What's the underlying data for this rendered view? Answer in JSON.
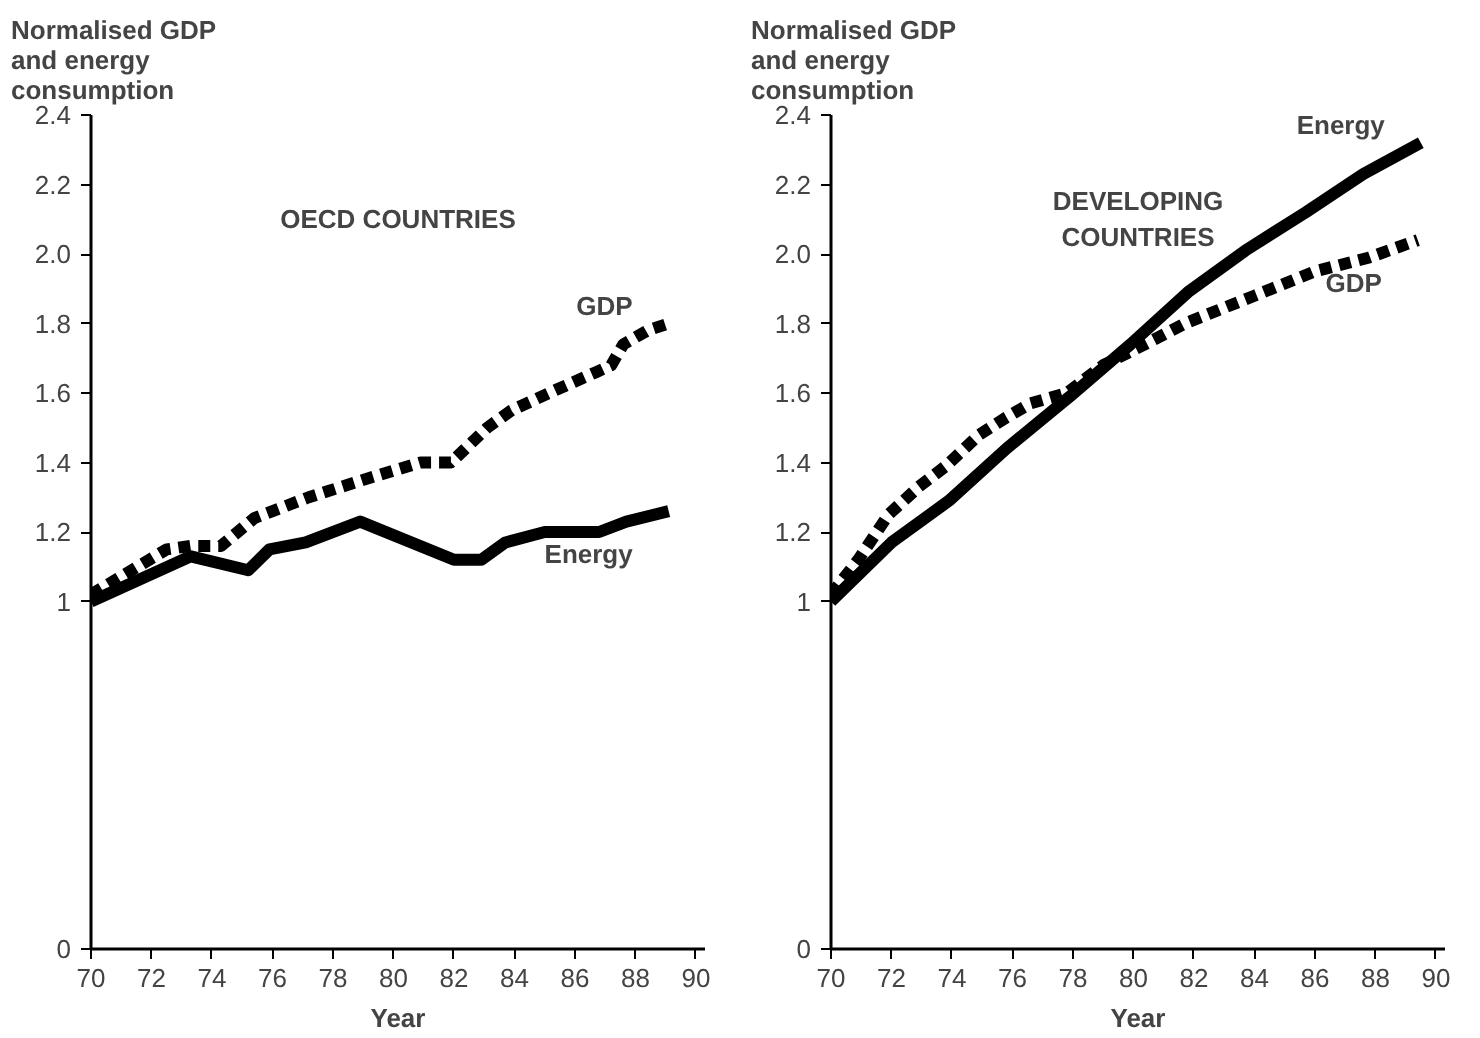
{
  "chart_data": [
    {
      "type": "line",
      "ylabel": "Normalised GDP\nand energy\nconsumption",
      "xlabel": "Year",
      "annotations": [
        "OECD COUNTRIES"
      ],
      "xlim": [
        70,
        90.3
      ],
      "ylim": [
        0,
        2.4
      ],
      "xticks": [
        70,
        72,
        74,
        76,
        78,
        80,
        82,
        84,
        86,
        88,
        90
      ],
      "yticks": [
        0,
        1,
        1.2,
        1.4,
        1.6,
        1.8,
        {
          "value": 2,
          "label": "2.0"
        },
        2.2,
        2.4
      ],
      "grid": false,
      "series": [
        {
          "name": "GDP",
          "color": "#000000",
          "line_style": "dashed",
          "x": [
            70,
            72.5,
            73.3,
            74.3,
            75.4,
            77.2,
            79,
            80.9,
            81.9,
            83.1,
            83.9,
            85.4,
            86.7,
            87.2,
            87.6,
            88.4,
            89.1
          ],
          "values": [
            1.02,
            1.15,
            1.16,
            1.16,
            1.24,
            1.3,
            1.35,
            1.4,
            1.4,
            1.5,
            1.55,
            1.61,
            1.66,
            1.68,
            1.74,
            1.78,
            1.8
          ]
        },
        {
          "name": "Energy",
          "color": "#000000",
          "line_style": "solid",
          "x": [
            70,
            73.3,
            75.2,
            75.9,
            77.1,
            78.9,
            82.0,
            82.9,
            83.7,
            85,
            86.8,
            87.7,
            89.1
          ],
          "values": [
            1.0,
            1.13,
            1.09,
            1.15,
            1.17,
            1.23,
            1.12,
            1.12,
            1.17,
            1.2,
            1.2,
            1.23,
            1.26
          ]
        }
      ]
    },
    {
      "type": "line",
      "ylabel": "Normalised GDP\nand energy\nconsumption",
      "xlabel": "Year",
      "annotations": [
        "DEVELOPING\nCOUNTRIES"
      ],
      "xlim": [
        70,
        90.3
      ],
      "ylim": [
        0,
        2.4
      ],
      "xticks": [
        70,
        72,
        74,
        76,
        78,
        80,
        82,
        84,
        86,
        88,
        90
      ],
      "yticks": [
        0,
        1,
        1.2,
        1.4,
        1.6,
        1.8,
        {
          "value": 2,
          "label": "2.0"
        },
        2.2,
        2.4
      ],
      "grid": false,
      "series": [
        {
          "name": "Energy",
          "color": "#000000",
          "line_style": "solid",
          "x": [
            70,
            72,
            73.9,
            75.8,
            77.9,
            79.9,
            81.8,
            83.7,
            85.7,
            87.6,
            89.5
          ],
          "values": [
            1.0,
            1.17,
            1.29,
            1.44,
            1.59,
            1.74,
            1.89,
            2.01,
            2.12,
            2.23,
            2.32
          ]
        },
        {
          "name": "GDP",
          "color": "#000000",
          "line_style": "dashed",
          "x": [
            70,
            70.9,
            71.9,
            72.9,
            73.8,
            74.9,
            75.8,
            76.6,
            77.8,
            79,
            80.6,
            81.7,
            84,
            86,
            87.8,
            89.4
          ],
          "values": [
            1.02,
            1.12,
            1.25,
            1.33,
            1.39,
            1.48,
            1.53,
            1.57,
            1.6,
            1.68,
            1.75,
            1.8,
            1.88,
            1.95,
            1.99,
            2.04
          ]
        }
      ]
    }
  ]
}
